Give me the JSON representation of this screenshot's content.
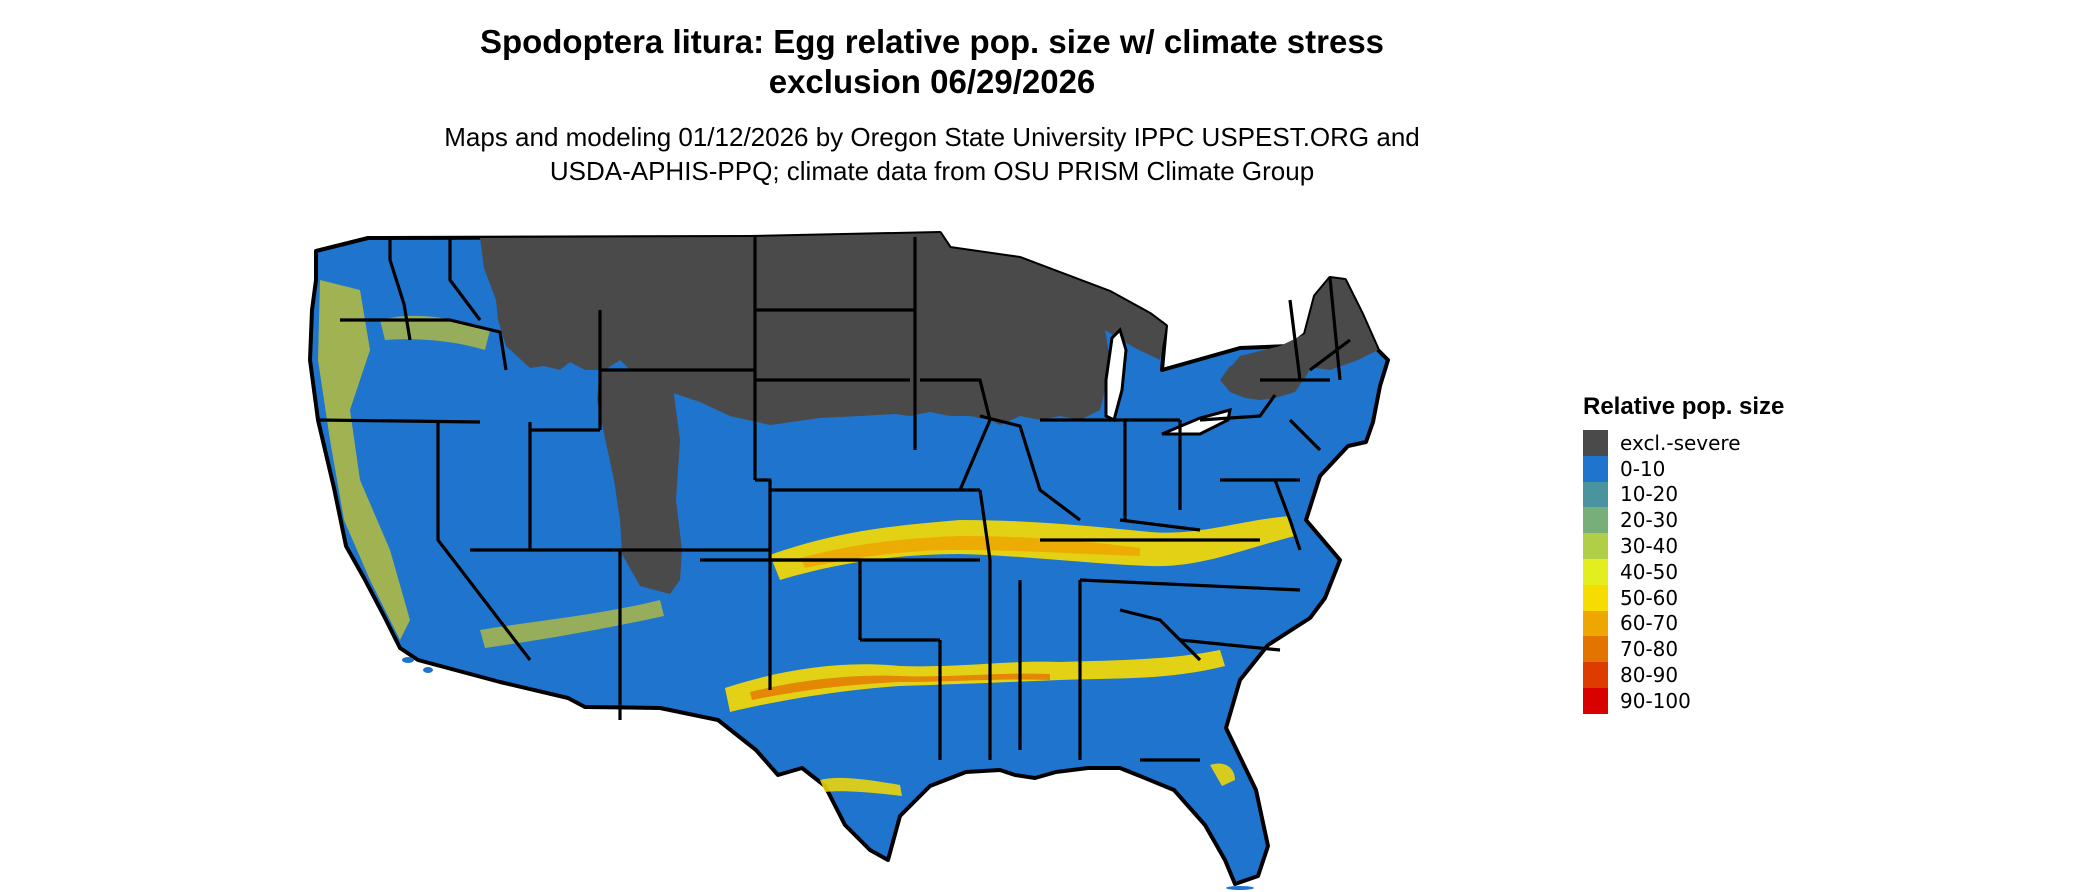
{
  "title_line1": "Spodoptera litura: Egg relative pop. size w/ climate stress",
  "title_line2": "exclusion 06/29/2026",
  "subtitle_line1": "Maps and modeling 01/12/2026 by Oregon State University IPPC USPEST.ORG and",
  "subtitle_line2": "USDA-APHIS-PPQ; climate data from OSU PRISM Climate Group",
  "legend": {
    "title": "Relative pop. size",
    "items": [
      {
        "label": "excl.-severe",
        "color": "#4a4a4a"
      },
      {
        "label": "0-10",
        "color": "#1f74cd"
      },
      {
        "label": "10-20",
        "color": "#4a94a0"
      },
      {
        "label": "20-30",
        "color": "#78ae78"
      },
      {
        "label": "30-40",
        "color": "#b0cf46"
      },
      {
        "label": "40-50",
        "color": "#e4ee1e"
      },
      {
        "label": "50-60",
        "color": "#f7dc00"
      },
      {
        "label": "60-70",
        "color": "#eea600"
      },
      {
        "label": "70-80",
        "color": "#e37400"
      },
      {
        "label": "80-90",
        "color": "#dd3b00"
      },
      {
        "label": "90-100",
        "color": "#d90000"
      }
    ]
  }
}
